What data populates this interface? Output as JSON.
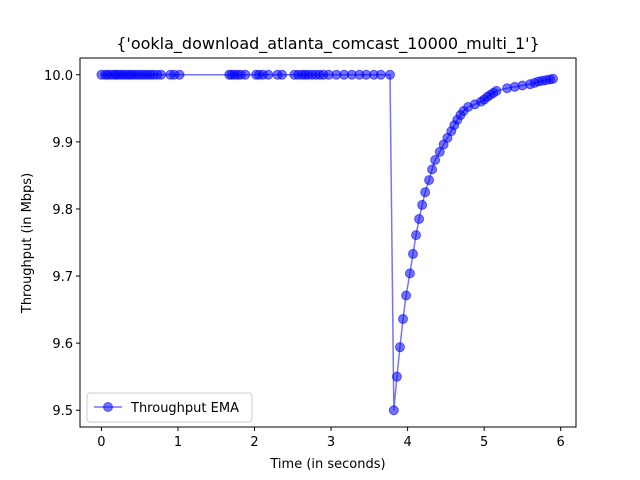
{
  "chart_data": {
    "type": "line",
    "title": "{'ookla_download_atlanta_comcast_10000_multi_1'}",
    "xlabel": "Time (in seconds)",
    "ylabel": "Throughput (in Mbps)",
    "xlim": [
      -0.28,
      6.2
    ],
    "ylim": [
      9.475,
      10.025
    ],
    "xticks": [
      0,
      1,
      2,
      3,
      4,
      5,
      6
    ],
    "yticks": [
      9.5,
      9.6,
      9.7,
      9.8,
      9.9,
      10.0
    ],
    "xtick_labels": [
      "0",
      "1",
      "2",
      "3",
      "4",
      "5",
      "6"
    ],
    "ytick_labels": [
      "9.5",
      "9.6",
      "9.7",
      "9.8",
      "9.9",
      "10.0"
    ],
    "grid": false,
    "legend_position": "lower-left",
    "color": "#0000ff",
    "series": [
      {
        "name": "Throughput EMA",
        "x": [
          0.0,
          0.05,
          0.08,
          0.12,
          0.16,
          0.19,
          0.22,
          0.26,
          0.29,
          0.33,
          0.37,
          0.4,
          0.44,
          0.48,
          0.52,
          0.56,
          0.6,
          0.64,
          0.68,
          0.73,
          0.78,
          0.9,
          0.95,
          1.02,
          1.67,
          1.7,
          1.74,
          1.78,
          1.82,
          1.88,
          2.02,
          2.06,
          2.11,
          2.18,
          2.3,
          2.36,
          2.52,
          2.57,
          2.62,
          2.66,
          2.7,
          2.75,
          2.8,
          2.85,
          2.9,
          2.97,
          3.07,
          3.17,
          3.27,
          3.37,
          3.46,
          3.56,
          3.65,
          3.77,
          3.82,
          3.86,
          3.9,
          3.94,
          3.98,
          4.03,
          4.07,
          4.11,
          4.15,
          4.19,
          4.23,
          4.28,
          4.32,
          4.36,
          4.42,
          4.47,
          4.52,
          4.57,
          4.61,
          4.65,
          4.69,
          4.73,
          4.79,
          4.88,
          4.96,
          5.0,
          5.04,
          5.08,
          5.12,
          5.16,
          5.3,
          5.4,
          5.5,
          5.6,
          5.66,
          5.71,
          5.76,
          5.81,
          5.86,
          5.9
        ],
        "y": [
          10.0,
          10.0,
          10.0,
          10.0,
          10.0,
          10.0,
          10.0,
          10.0,
          10.0,
          10.0,
          10.0,
          10.0,
          10.0,
          10.0,
          10.0,
          10.0,
          10.0,
          10.0,
          10.0,
          10.0,
          10.0,
          10.0,
          10.0,
          10.0,
          10.0,
          10.0,
          10.0,
          10.0,
          10.0,
          10.0,
          10.0,
          10.0,
          10.0,
          10.0,
          10.0,
          10.0,
          10.0,
          10.0,
          10.0,
          10.0,
          10.0,
          10.0,
          10.0,
          10.0,
          10.0,
          10.0,
          10.0,
          10.0,
          10.0,
          10.0,
          10.0,
          10.0,
          10.0,
          10.0,
          9.5,
          9.55,
          9.594,
          9.636,
          9.671,
          9.704,
          9.733,
          9.761,
          9.785,
          9.806,
          9.825,
          9.843,
          9.859,
          9.873,
          9.885,
          9.896,
          9.906,
          9.916,
          9.925,
          9.933,
          9.94,
          9.946,
          9.952,
          9.956,
          9.96,
          9.963,
          9.967,
          9.97,
          9.973,
          9.976,
          9.98,
          9.982,
          9.984,
          9.986,
          9.988,
          9.99,
          9.991,
          9.992,
          9.993,
          9.994
        ]
      }
    ]
  }
}
